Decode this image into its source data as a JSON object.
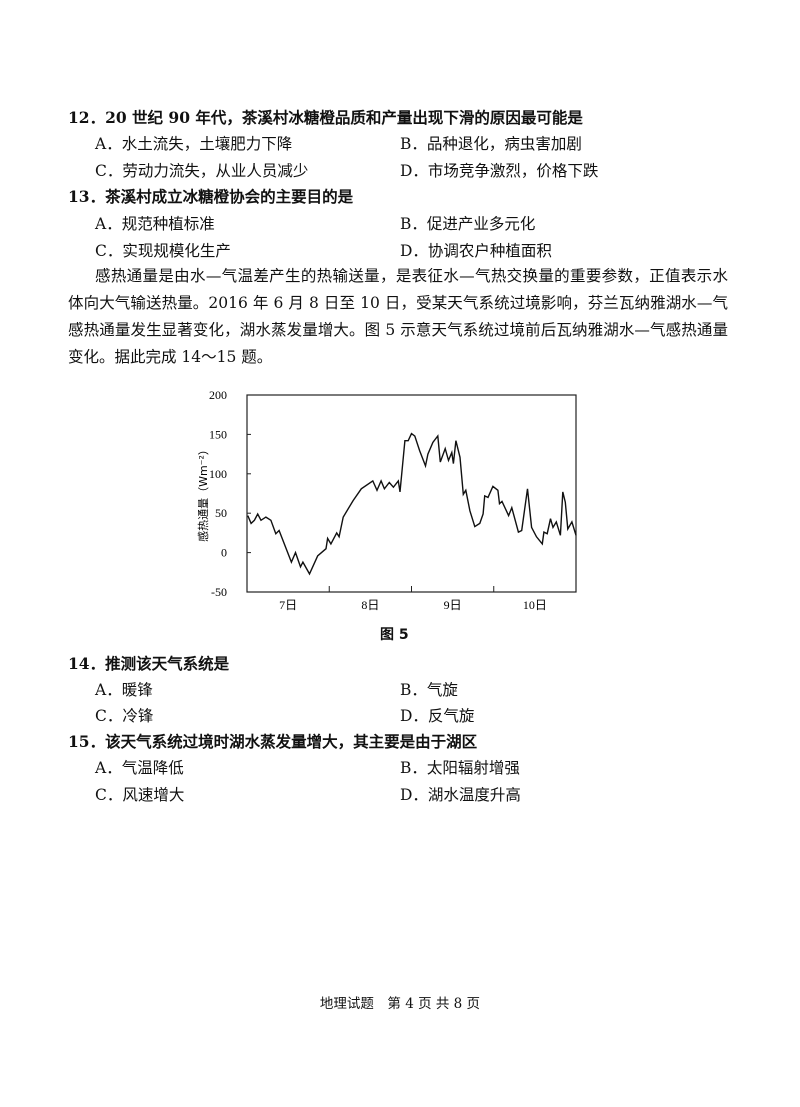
{
  "questions": [
    {
      "stem": "12．20 世纪 90 年代，茶溪村冰糖橙品质和产量出现下滑的原因最可能是",
      "options": [
        "A．水土流失，土壤肥力下降",
        "B．品种退化，病虫害加剧",
        "C．劳动力流失，从业人员减少",
        "D．市场竞争激烈，价格下跌"
      ]
    },
    {
      "stem": "13．茶溪村成立冰糖橙协会的主要目的是",
      "options": [
        "A．规范种植标准",
        "B．促进产业多元化",
        "C．实现规模化生产",
        "D．协调农户种植面积"
      ]
    },
    {
      "stem": "14．推测该天气系统是",
      "options": [
        "A．暖锋",
        "B．气旋",
        "C．冷锋",
        "D．反气旋"
      ]
    },
    {
      "stem": "15．该天气系统过境时湖水蒸发量增大，其主要是由于湖区",
      "options": [
        "A．气温降低",
        "B．太阳辐射增强",
        "C．风速增大",
        "D．湖水温度升高"
      ]
    }
  ],
  "passage": "感热通量是由水—气温差产生的热输送量，是表征水—气热交换量的重要参数，正值表示水体向大气输送热量。2016 年 6 月 8 日至 10 日，受某天气系统过境影响，芬兰瓦纳雅湖水—气感热通量发生显著变化，湖水蒸发量增大。图 5 示意天气系统过境前后瓦纳雅湖水—气感热通量变化。据此完成 14～15 题。",
  "figure_caption": "图 5",
  "footer": "地理试题　第 4 页 共 8 页",
  "chart_data": {
    "type": "line",
    "ylabel": "感热通量（Wm⁻²）",
    "xlabel": "",
    "ylim": [
      -50,
      200
    ],
    "yticks": [
      "200",
      "150",
      "100",
      "50",
      "0",
      "-50"
    ],
    "xlim": [
      7,
      11
    ],
    "xtick_labels": [
      "7日",
      "8日",
      "9日",
      "10日"
    ],
    "grid": false,
    "x": [
      7.01,
      7.05,
      7.09,
      7.13,
      7.17,
      7.23,
      7.29,
      7.35,
      7.39,
      7.54,
      7.59,
      7.65,
      7.68,
      7.76,
      7.86,
      7.96,
      7.98,
      8.02,
      8.09,
      8.12,
      8.17,
      8.29,
      8.39,
      8.53,
      8.58,
      8.63,
      8.67,
      8.73,
      8.78,
      8.84,
      8.86,
      8.92,
      8.96,
      9.0,
      9.04,
      9.1,
      9.17,
      9.2,
      9.26,
      9.32,
      9.35,
      9.41,
      9.45,
      9.49,
      9.51,
      9.54,
      9.59,
      9.63,
      9.66,
      9.71,
      9.77,
      9.83,
      9.87,
      9.89,
      9.93,
      9.99,
      10.05,
      10.07,
      10.1,
      10.18,
      10.22,
      10.3,
      10.34,
      10.41,
      10.46,
      10.52,
      10.59,
      10.61,
      10.65,
      10.69,
      10.72,
      10.76,
      10.81,
      10.84,
      10.87,
      10.9,
      10.95,
      11.0
    ],
    "y": [
      47,
      37,
      41,
      49,
      41,
      45,
      41,
      24,
      28,
      -12,
      0,
      -18,
      -12,
      -27,
      -4,
      5,
      18,
      11,
      25,
      20,
      45,
      66,
      81,
      91,
      79,
      91,
      81,
      89,
      83,
      91,
      77,
      142,
      142,
      151,
      148,
      129,
      110,
      125,
      140,
      148,
      115,
      132,
      117,
      127,
      113,
      142,
      121,
      74,
      79,
      53,
      33,
      37,
      49,
      72,
      70,
      84,
      79,
      62,
      65,
      47,
      57,
      26,
      28,
      81,
      32,
      20,
      11,
      26,
      24,
      43,
      32,
      39,
      22,
      77,
      64,
      30,
      39,
      22
    ]
  }
}
